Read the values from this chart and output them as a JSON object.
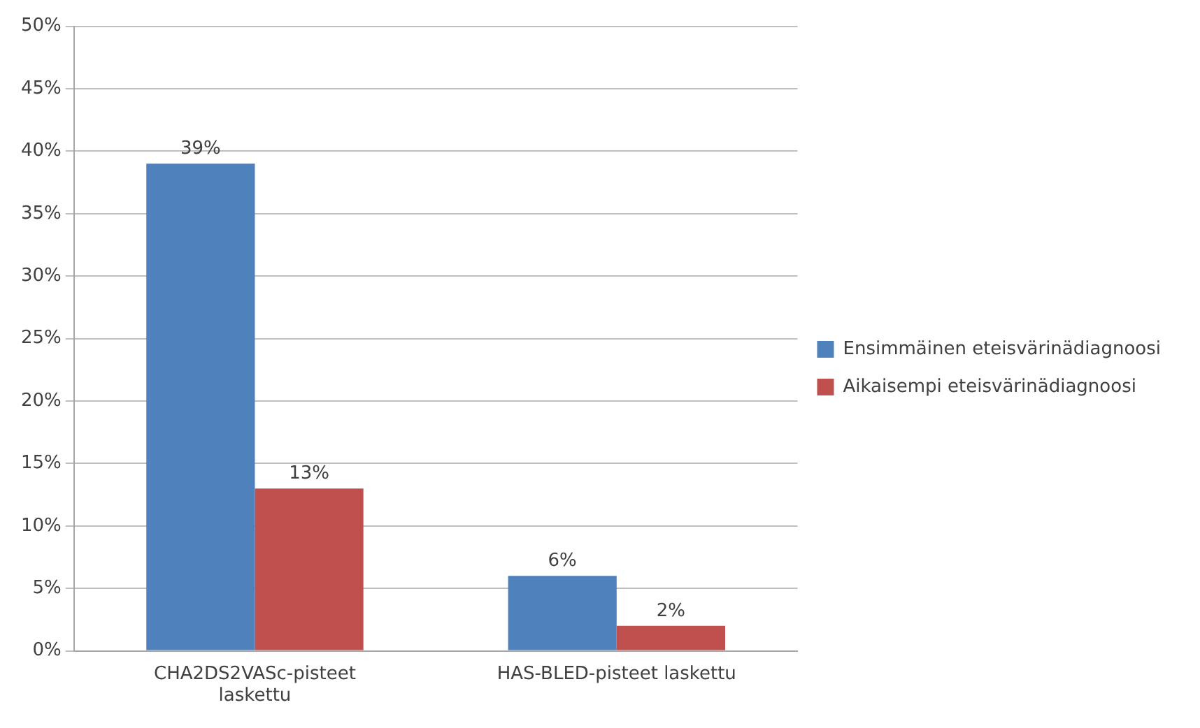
{
  "chart_data": {
    "type": "bar",
    "categories": [
      "CHA2DS2VASc-pisteet laskettu",
      "HAS-BLED-pisteet laskettu"
    ],
    "series": [
      {
        "name": "Ensimmäinen eteisvärinädiagnoosi",
        "color": "#4f81bd",
        "values": [
          39,
          6
        ],
        "value_labels": [
          "39%",
          "6%"
        ]
      },
      {
        "name": "Aikaisempi eteisvärinädiagnoosi",
        "color": "#c0504d",
        "values": [
          13,
          2
        ],
        "value_labels": [
          "13%",
          "2%"
        ]
      }
    ],
    "ylim": [
      0,
      50
    ],
    "yticks": [
      {
        "value": 0,
        "label": "0%"
      },
      {
        "value": 5,
        "label": "5%"
      },
      {
        "value": 10,
        "label": "10%"
      },
      {
        "value": 15,
        "label": "15%"
      },
      {
        "value": 20,
        "label": "20%"
      },
      {
        "value": 25,
        "label": "25%"
      },
      {
        "value": 30,
        "label": "30%"
      },
      {
        "value": 35,
        "label": "35%"
      },
      {
        "value": 40,
        "label": "40%"
      },
      {
        "value": 45,
        "label": "45%"
      },
      {
        "value": 50,
        "label": "50%"
      }
    ],
    "grid": "y",
    "legend": "right"
  }
}
